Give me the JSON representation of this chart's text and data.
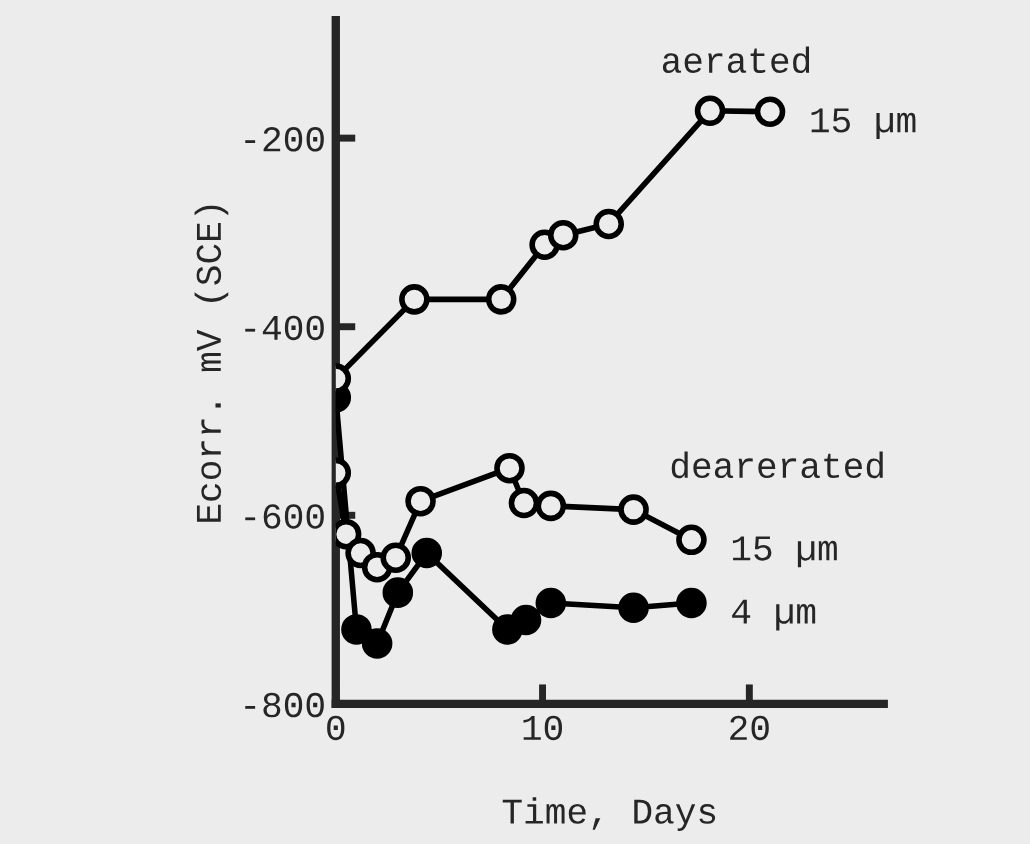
{
  "chart_data": {
    "type": "line",
    "xlabel": "Time, Days",
    "ylabel": "Ecorr. mV (SCE)",
    "xlim": [
      0,
      26.5
    ],
    "ylim": [
      -800,
      -75
    ],
    "xticks": [
      0,
      10,
      20
    ],
    "yticks": [
      -200,
      -400,
      -600,
      -800
    ],
    "grid": false,
    "marker": "circle",
    "line_style": "solid",
    "series": [
      {
        "name": "15 µm",
        "color": "#ececec",
        "x": [
          0,
          3.8,
          8.0,
          10.1,
          11.0,
          13.2,
          18.1,
          21.0
        ],
        "values": [
          -455,
          -371,
          -371,
          -313,
          -303,
          -291,
          -171,
          -172
        ]
      },
      {
        "name": "15 µm",
        "color": "#ececec",
        "x": [
          0,
          0.5,
          1.2,
          2.0,
          2.9,
          4.1,
          8.4,
          9.1,
          10.4,
          14.4,
          17.2
        ],
        "values": [
          -555,
          -620,
          -640,
          -655,
          -645,
          -585,
          -550,
          -587,
          -590,
          -594,
          -626
        ]
      },
      {
        "name": "4 µm",
        "color": "#000000",
        "x": [
          0,
          1.0,
          2.0,
          3.0,
          4.4,
          8.3,
          9.2,
          10.4,
          14.4,
          17.2
        ],
        "values": [
          -475,
          -721,
          -736,
          -682,
          -640,
          -721,
          -711,
          -693,
          -698,
          -693
        ]
      }
    ],
    "annotations": [
      "aerated",
      "dearerated"
    ]
  }
}
